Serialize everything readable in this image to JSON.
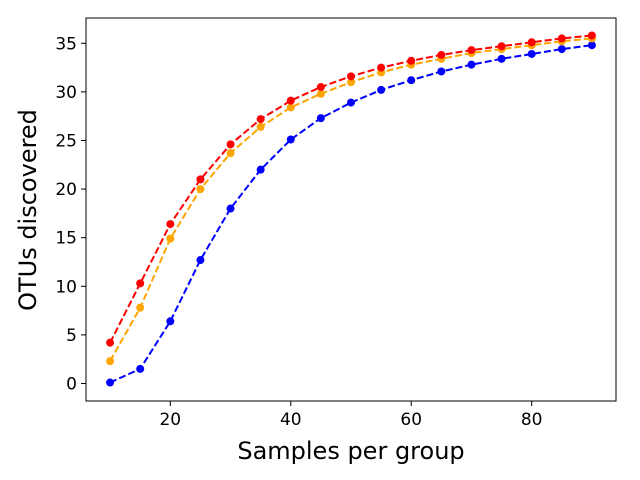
{
  "chart_data": {
    "type": "line",
    "title": "",
    "xlabel": "Samples per group",
    "ylabel": "OTUs discovered",
    "xlim": [
      6,
      94
    ],
    "ylim": [
      -1.8,
      37.6
    ],
    "xticks": [
      20,
      40,
      60,
      80
    ],
    "yticks": [
      0,
      5,
      10,
      15,
      20,
      25,
      30,
      35
    ],
    "grid": false,
    "legend": "none",
    "line_style": "dashed",
    "marker": "circle",
    "x": [
      10,
      15,
      20,
      25,
      30,
      35,
      40,
      45,
      50,
      55,
      60,
      65,
      70,
      75,
      80,
      85,
      90
    ],
    "series": [
      {
        "color": "#ff0000",
        "values": [
          4.2,
          10.3,
          16.4,
          21.0,
          24.6,
          27.2,
          29.1,
          30.5,
          31.6,
          32.5,
          33.2,
          33.8,
          34.3,
          34.7,
          35.1,
          35.5,
          35.8
        ]
      },
      {
        "color": "#ffa500",
        "values": [
          2.3,
          7.8,
          14.9,
          20.0,
          23.7,
          26.4,
          28.4,
          29.8,
          31.0,
          32.0,
          32.8,
          33.4,
          34.0,
          34.4,
          34.8,
          35.2,
          35.5
        ]
      },
      {
        "color": "#0000ff",
        "values": [
          0.1,
          1.5,
          6.4,
          12.7,
          18.0,
          22.0,
          25.1,
          27.3,
          28.9,
          30.2,
          31.2,
          32.1,
          32.8,
          33.4,
          33.9,
          34.4,
          34.8
        ]
      }
    ]
  }
}
